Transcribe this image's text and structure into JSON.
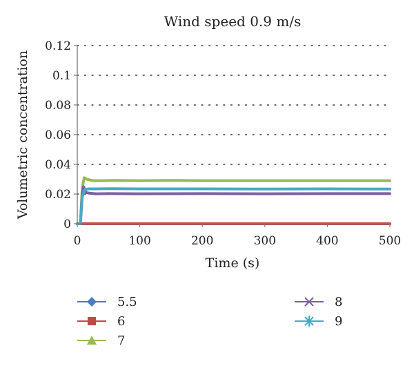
{
  "chart_data": {
    "type": "line",
    "title": "Wind speed 0.9 m/s",
    "xlabel": "Time (s)",
    "ylabel": "Volumetric concentration",
    "xlim": [
      0,
      500
    ],
    "ylim": [
      0,
      0.12
    ],
    "xticks": [
      0,
      100,
      200,
      300,
      400,
      500
    ],
    "yticks": [
      0,
      0.02,
      0.04,
      0.06,
      0.08,
      0.1,
      0.12
    ],
    "xtick_labels": [
      "0",
      "100",
      "200",
      "300",
      "400",
      "500"
    ],
    "ytick_labels": [
      "0",
      "0.02",
      "0.04",
      "0.06",
      "0.08",
      "0.1",
      "0.12"
    ],
    "grid": "horizontal dotted",
    "legend_position": "bottom",
    "series": [
      {
        "name": "5.5",
        "color": "#4a7ebb",
        "marker": "diamond",
        "x": [
          0,
          5,
          500
        ],
        "y": [
          0,
          0,
          0
        ]
      },
      {
        "name": "6",
        "color": "#be4b48",
        "marker": "square",
        "x": [
          0,
          5,
          500
        ],
        "y": [
          0,
          0,
          0
        ]
      },
      {
        "name": "7",
        "color": "#98b954",
        "marker": "triangle",
        "x": [
          0,
          5,
          8,
          11,
          15,
          25,
          40,
          60,
          100,
          150,
          200,
          300,
          400,
          500
        ],
        "y": [
          0,
          0,
          0.024,
          0.031,
          0.03,
          0.029,
          0.029,
          0.0292,
          0.029,
          0.0292,
          0.029,
          0.029,
          0.029,
          0.029
        ]
      },
      {
        "name": "8",
        "color": "#7d60a0",
        "marker": "x",
        "x": [
          0,
          5,
          8,
          10,
          14,
          20,
          30,
          50,
          100,
          200,
          300,
          400,
          500
        ],
        "y": [
          0,
          0,
          0.02,
          0.025,
          0.021,
          0.0205,
          0.0202,
          0.0203,
          0.0202,
          0.0203,
          0.0202,
          0.0203,
          0.0203
        ]
      },
      {
        "name": "9",
        "color": "#46aac5",
        "marker": "asterisk",
        "x": [
          0,
          5,
          8,
          12,
          18,
          30,
          50,
          100,
          200,
          300,
          400,
          500
        ],
        "y": [
          0,
          0,
          0.018,
          0.023,
          0.0235,
          0.0235,
          0.0236,
          0.0235,
          0.0235,
          0.0234,
          0.0235,
          0.0234
        ]
      }
    ]
  }
}
